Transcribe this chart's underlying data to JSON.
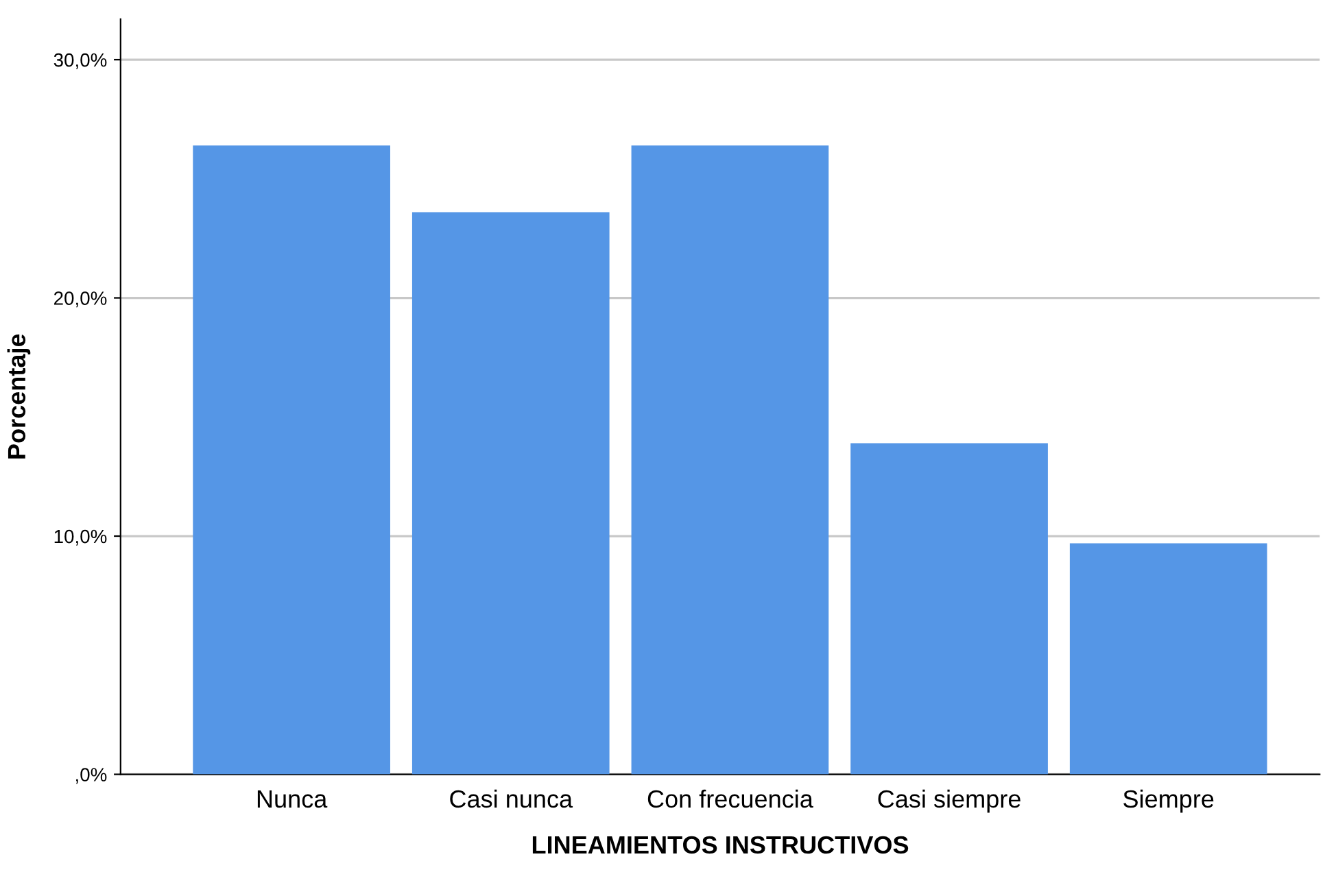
{
  "chart_data": {
    "type": "bar",
    "xlabel": "LINEAMIENTOS INSTRUCTIVOS",
    "ylabel": "Porcentaje",
    "categories": [
      "Nunca",
      "Casi nunca",
      "Con frecuencia",
      "Casi siempre",
      "Siempre"
    ],
    "values": [
      26.4,
      23.6,
      26.4,
      13.9,
      9.7
    ],
    "color": "#5596e6",
    "ylim": [
      0,
      31.7
    ],
    "yticks": [
      {
        "value": 0,
        "label": ",0%"
      },
      {
        "value": 10,
        "label": "10,0%"
      },
      {
        "value": 20,
        "label": "20,0%"
      },
      {
        "value": 30,
        "label": "30,0%"
      }
    ],
    "grid": "y"
  }
}
